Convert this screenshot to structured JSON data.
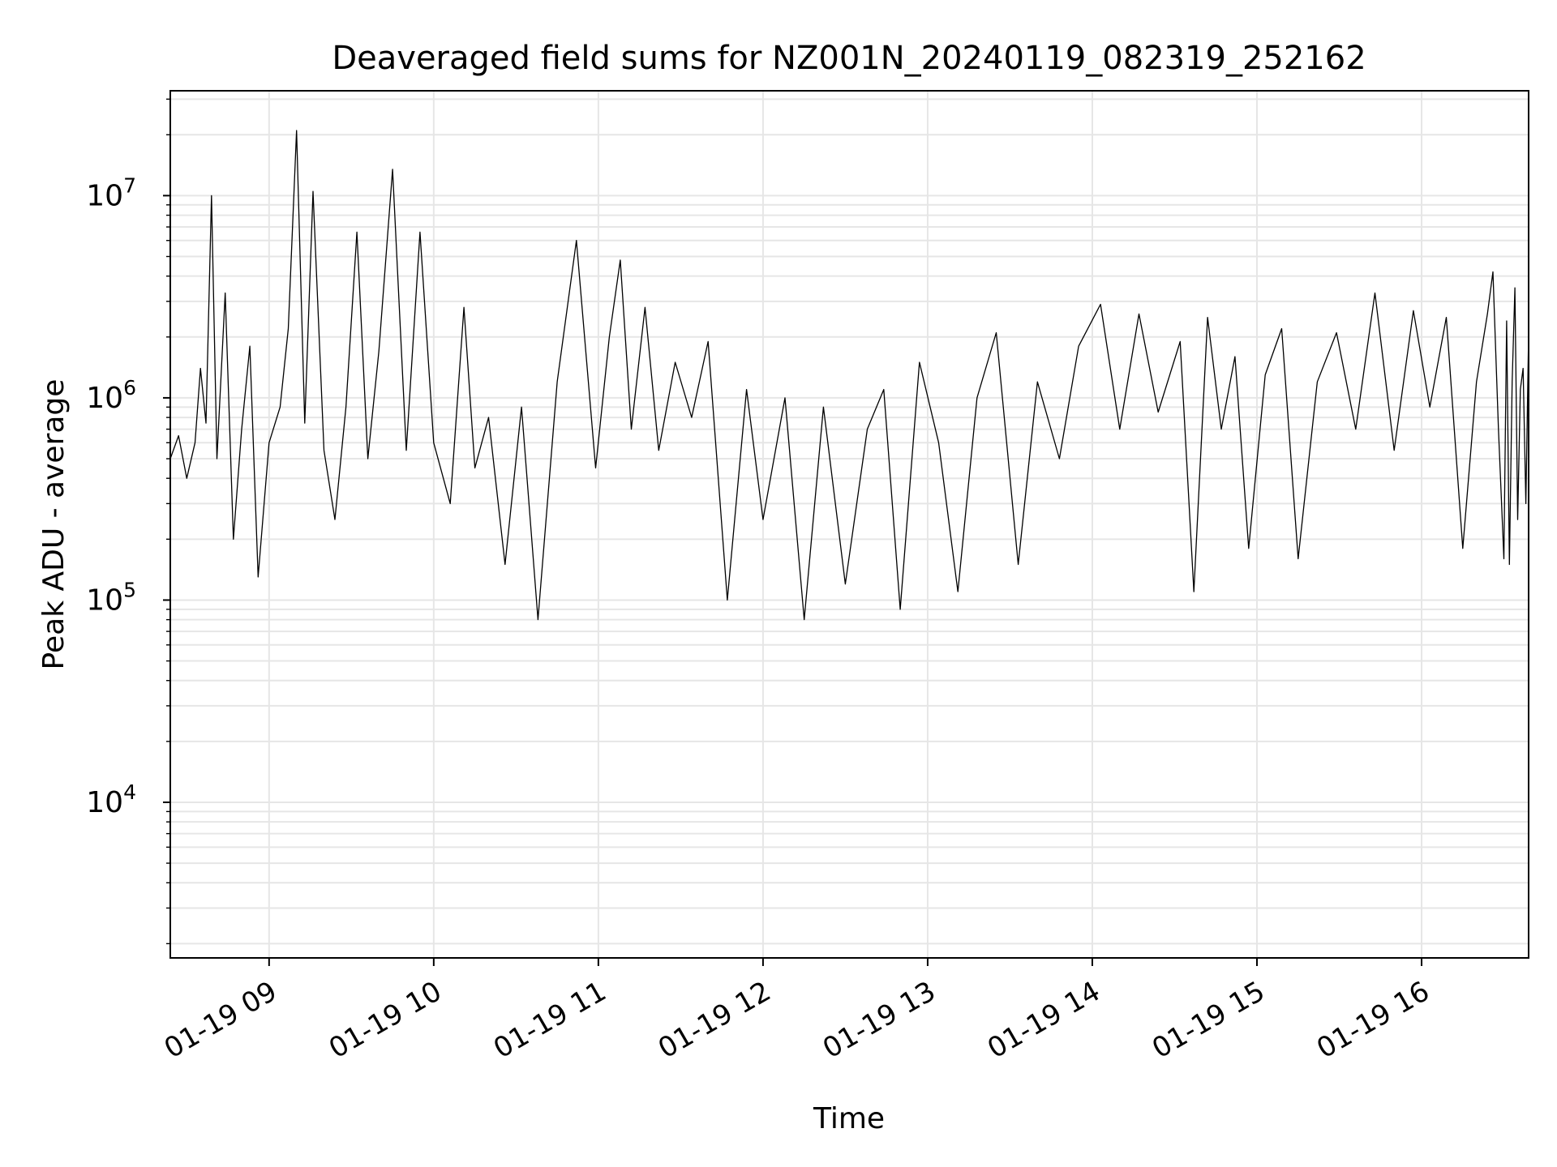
{
  "chart_data": {
    "type": "line",
    "title": "Deaveraged field sums for NZ001N_20240119_082319_252162",
    "xlabel": "Time",
    "ylabel": "Peak ADU - average",
    "yscale": "log",
    "xlim": [
      "2024-01-19 08:24",
      "2024-01-19 16:39"
    ],
    "ylim": [
      1700,
      33000000
    ],
    "grid": true,
    "line_color": "#000000",
    "x_ticks": [
      {
        "value": "2024-01-19 09:00",
        "label": "01-19 09"
      },
      {
        "value": "2024-01-19 10:00",
        "label": "01-19 10"
      },
      {
        "value": "2024-01-19 11:00",
        "label": "01-19 11"
      },
      {
        "value": "2024-01-19 12:00",
        "label": "01-19 12"
      },
      {
        "value": "2024-01-19 13:00",
        "label": "01-19 13"
      },
      {
        "value": "2024-01-19 14:00",
        "label": "01-19 14"
      },
      {
        "value": "2024-01-19 15:00",
        "label": "01-19 15"
      },
      {
        "value": "2024-01-19 16:00",
        "label": "01-19 16"
      }
    ],
    "y_ticks": [
      {
        "value": 10000,
        "base": "10",
        "exp": "4"
      },
      {
        "value": 100000,
        "base": "10",
        "exp": "5"
      },
      {
        "value": 1000000,
        "base": "10",
        "exp": "6"
      },
      {
        "value": 10000000,
        "base": "10",
        "exp": "7"
      }
    ],
    "series": [
      {
        "x": [
          "2024-01-19 08:24",
          "2024-01-19 08:27",
          "2024-01-19 08:30",
          "2024-01-19 08:33",
          "2024-01-19 08:35",
          "2024-01-19 08:37",
          "2024-01-19 08:39",
          "2024-01-19 08:41",
          "2024-01-19 08:44",
          "2024-01-19 08:47",
          "2024-01-19 08:50",
          "2024-01-19 08:53",
          "2024-01-19 08:56",
          "2024-01-19 09:00",
          "2024-01-19 09:04",
          "2024-01-19 09:07",
          "2024-01-19 09:10",
          "2024-01-19 09:13",
          "2024-01-19 09:16",
          "2024-01-19 09:20",
          "2024-01-19 09:24",
          "2024-01-19 09:28",
          "2024-01-19 09:32",
          "2024-01-19 09:36",
          "2024-01-19 09:40",
          "2024-01-19 09:45",
          "2024-01-19 09:50",
          "2024-01-19 09:55",
          "2024-01-19 10:00",
          "2024-01-19 10:06",
          "2024-01-19 10:11",
          "2024-01-19 10:15",
          "2024-01-19 10:20",
          "2024-01-19 10:26",
          "2024-01-19 10:32",
          "2024-01-19 10:38",
          "2024-01-19 10:45",
          "2024-01-19 10:52",
          "2024-01-19 10:59",
          "2024-01-19 11:04",
          "2024-01-19 11:08",
          "2024-01-19 11:12",
          "2024-01-19 11:17",
          "2024-01-19 11:22",
          "2024-01-19 11:28",
          "2024-01-19 11:34",
          "2024-01-19 11:40",
          "2024-01-19 11:47",
          "2024-01-19 11:54",
          "2024-01-19 12:00",
          "2024-01-19 12:08",
          "2024-01-19 12:15",
          "2024-01-19 12:22",
          "2024-01-19 12:30",
          "2024-01-19 12:38",
          "2024-01-19 12:44",
          "2024-01-19 12:50",
          "2024-01-19 12:57",
          "2024-01-19 13:04",
          "2024-01-19 13:11",
          "2024-01-19 13:18",
          "2024-01-19 13:25",
          "2024-01-19 13:33",
          "2024-01-19 13:40",
          "2024-01-19 13:48",
          "2024-01-19 13:55",
          "2024-01-19 14:03",
          "2024-01-19 14:10",
          "2024-01-19 14:17",
          "2024-01-19 14:24",
          "2024-01-19 14:32",
          "2024-01-19 14:37",
          "2024-01-19 14:42",
          "2024-01-19 14:47",
          "2024-01-19 14:52",
          "2024-01-19 14:57",
          "2024-01-19 15:03",
          "2024-01-19 15:09",
          "2024-01-19 15:15",
          "2024-01-19 15:22",
          "2024-01-19 15:29",
          "2024-01-19 15:36",
          "2024-01-19 15:43",
          "2024-01-19 15:50",
          "2024-01-19 15:57",
          "2024-01-19 16:03",
          "2024-01-19 16:09",
          "2024-01-19 16:15",
          "2024-01-19 16:20",
          "2024-01-19 16:24",
          "2024-01-19 16:26",
          "2024-01-19 16:28",
          "2024-01-19 16:30",
          "2024-01-19 16:31",
          "2024-01-19 16:32",
          "2024-01-19 16:33",
          "2024-01-19 16:34",
          "2024-01-19 16:35",
          "2024-01-19 16:36",
          "2024-01-19 16:37",
          "2024-01-19 16:38",
          "2024-01-19 16:39"
        ],
        "y": [
          500000,
          650000,
          400000,
          600000,
          1400000,
          750000,
          10000000,
          500000,
          3300000,
          200000,
          700000,
          1800000,
          130000,
          600000,
          900000,
          2200000,
          21000000,
          750000,
          10500000,
          550000,
          250000,
          900000,
          6600000,
          500000,
          1700000,
          13500000,
          550000,
          6600000,
          600000,
          300000,
          2800000,
          450000,
          800000,
          150000,
          900000,
          80000,
          1200000,
          6000000,
          450000,
          2000000,
          4800000,
          700000,
          2800000,
          550000,
          1500000,
          800000,
          1900000,
          100000,
          1100000,
          250000,
          1000000,
          80000,
          900000,
          120000,
          700000,
          1100000,
          90000,
          1500000,
          600000,
          110000,
          1000000,
          2100000,
          150000,
          1200000,
          500000,
          1800000,
          2900000,
          700000,
          2600000,
          850000,
          1900000,
          110000,
          2500000,
          700000,
          1600000,
          180000,
          1300000,
          2200000,
          160000,
          1200000,
          2100000,
          700000,
          3300000,
          550000,
          2700000,
          900000,
          2500000,
          180000,
          1200000,
          2600000,
          4200000,
          700000,
          160000,
          2400000,
          150000,
          1200000,
          3500000,
          250000,
          1100000,
          1400000,
          300000,
          2100000
        ]
      }
    ]
  }
}
